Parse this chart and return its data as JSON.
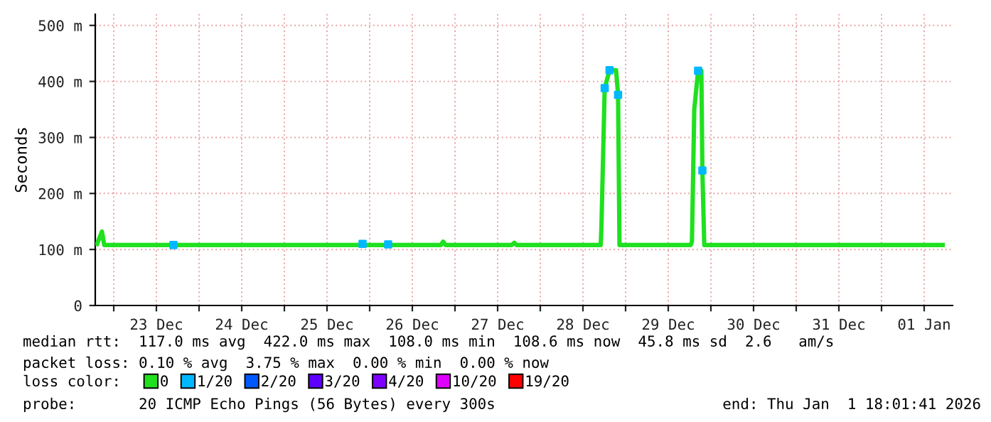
{
  "chart_data": {
    "type": "line",
    "ylabel": "Seconds",
    "xlim": [
      "2025-12-22T18:48",
      "2026-01-01T20:00"
    ],
    "xticks": [
      {
        "value": "2025-12-23T00:00",
        "label": null
      },
      {
        "value": "2025-12-23T12:00",
        "label": "23 Dec"
      },
      {
        "value": "2025-12-24T00:00",
        "label": null
      },
      {
        "value": "2025-12-24T12:00",
        "label": "24 Dec"
      },
      {
        "value": "2025-12-25T00:00",
        "label": null
      },
      {
        "value": "2025-12-25T12:00",
        "label": "25 Dec"
      },
      {
        "value": "2025-12-26T00:00",
        "label": null
      },
      {
        "value": "2025-12-26T12:00",
        "label": "26 Dec"
      },
      {
        "value": "2025-12-27T00:00",
        "label": null
      },
      {
        "value": "2025-12-27T12:00",
        "label": "27 Dec"
      },
      {
        "value": "2025-12-28T00:00",
        "label": null
      },
      {
        "value": "2025-12-28T12:00",
        "label": "28 Dec"
      },
      {
        "value": "2025-12-29T00:00",
        "label": null
      },
      {
        "value": "2025-12-29T12:00",
        "label": "29 Dec"
      },
      {
        "value": "2025-12-30T00:00",
        "label": null
      },
      {
        "value": "2025-12-30T12:00",
        "label": "30 Dec"
      },
      {
        "value": "2025-12-31T00:00",
        "label": null
      },
      {
        "value": "2025-12-31T12:00",
        "label": "31 Dec"
      },
      {
        "value": "2026-01-01T00:00",
        "label": null
      },
      {
        "value": "2026-01-01T12:00",
        "label": "01 Jan"
      }
    ],
    "ylim": [
      0,
      520
    ],
    "yticks": [
      0,
      {
        "value": 100,
        "label": "100 m"
      },
      {
        "value": 200,
        "label": "200 m"
      },
      {
        "value": 300,
        "label": "300 m"
      },
      {
        "value": 400,
        "label": "400 m"
      },
      {
        "value": 500,
        "label": "500 m"
      }
    ],
    "grid": true,
    "legend": "bottom",
    "legend_title": "loss color:",
    "marker": "none",
    "line_style": "solid",
    "series": [
      {
        "name": "0",
        "color": "#20e020",
        "x": [
          "2025-12-22T19:19",
          "2025-12-22T20:41",
          "2025-12-22T21:19",
          "2025-12-26T20:00",
          "2025-12-26T20:41",
          "2025-12-26T21:20",
          "2025-12-27T16:00",
          "2025-12-27T16:41",
          "2025-12-27T17:20",
          "2025-12-28T17:00",
          "2025-12-28T17:12",
          "2025-12-28T18:07",
          "2025-12-28T19:29",
          "2025-12-28T21:19",
          "2025-12-28T21:53",
          "2025-12-28T22:17",
          "2025-12-29T18:20",
          "2025-12-29T18:40",
          "2025-12-29T19:19",
          "2025-12-29T20:24",
          "2025-12-29T21:19",
          "2025-12-29T21:36",
          "2025-12-29T22:08",
          "2026-01-01T17:12"
        ],
        "values": [
          110,
          132,
          108,
          108,
          114,
          108,
          108,
          112,
          108,
          108,
          140,
          388,
          420,
          420,
          376,
          108,
          108,
          114,
          350,
          419,
          419,
          241,
          108,
          108
        ]
      },
      {
        "name": "1/20",
        "color": "#00b8ff",
        "type": "scatter",
        "marker": "square",
        "x": [
          "2025-12-23T16:48",
          "2025-12-25T22:00",
          "2025-12-26T05:12",
          "2025-12-28T18:07",
          "2025-12-28T19:29",
          "2025-12-28T21:53",
          "2025-12-29T20:24",
          "2025-12-29T21:36"
        ],
        "values": [
          108,
          110,
          109,
          388,
          420,
          376,
          419,
          241
        ]
      },
      {
        "name": "2/20",
        "color": "#0059ff",
        "type": "scatter",
        "marker": "square"
      },
      {
        "name": "3/20",
        "color": "#5e00ff",
        "type": "scatter",
        "marker": "square"
      },
      {
        "name": "4/20",
        "color": "#7e00ff",
        "type": "scatter",
        "marker": "square"
      },
      {
        "name": "10/20",
        "color": "#dd00ff",
        "type": "scatter",
        "marker": "square"
      },
      {
        "name": "19/20",
        "color": "#ff0000",
        "type": "scatter",
        "marker": "square"
      }
    ],
    "annotations": [
      "median rtt:  117.0 ms avg  422.0 ms max  108.0 ms min  108.6 ms now  45.8 ms sd  2.6   am/s",
      "packet loss: 0.10 % avg  3.75 % max  0.00 % min  0.00 % now",
      "probe:       20 ICMP Echo Pings (56 Bytes) every 300s",
      "end: Thu Jan  1 18:01:41 2026"
    ]
  }
}
